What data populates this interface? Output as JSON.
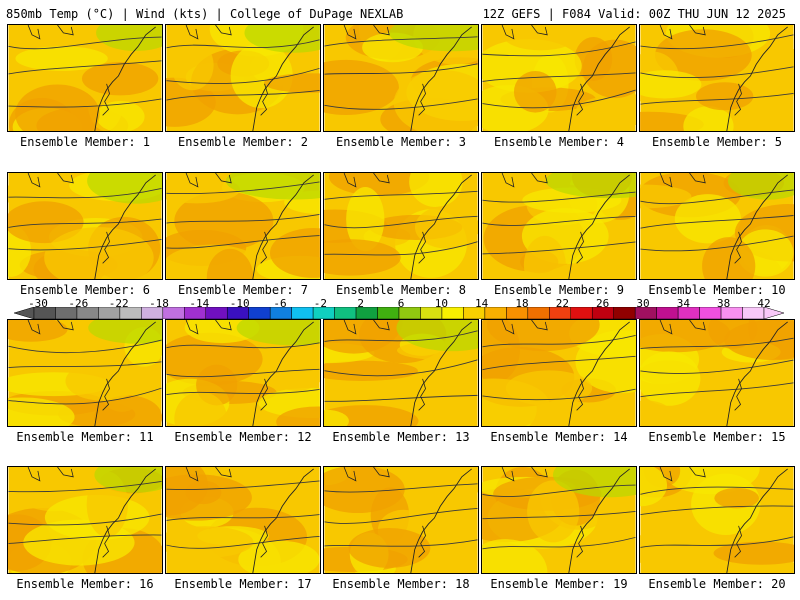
{
  "header": {
    "left": "850mb Temp (°C) | Wind (kts) | College of DuPage NEXLAB",
    "right": "12Z GEFS | F084 Valid: 00Z THU JUN 12 2025"
  },
  "panel_label_prefix": "Ensemble Member: ",
  "members": [
    "1",
    "2",
    "3",
    "4",
    "5",
    "6",
    "7",
    "8",
    "9",
    "10",
    "11",
    "12",
    "13",
    "14",
    "15",
    "16",
    "17",
    "18",
    "19",
    "20"
  ],
  "colorbar": {
    "labels": [
      "-30",
      "-26",
      "-22",
      "-18",
      "-14",
      "-10",
      "-6",
      "-2",
      "2",
      "6",
      "10",
      "14",
      "18",
      "22",
      "26",
      "30",
      "34",
      "38",
      "42"
    ],
    "colors": [
      "#555555",
      "#6e6e6e",
      "#888888",
      "#a2a2a2",
      "#bcbcbc",
      "#d0b0e0",
      "#c070e0",
      "#a030d0",
      "#7010c0",
      "#3a10c0",
      "#1040d0",
      "#1080e0",
      "#10c0f0",
      "#10d0c0",
      "#10c080",
      "#10a040",
      "#40b010",
      "#90c810",
      "#d8e010",
      "#f8f000",
      "#f8d000",
      "#f8b000",
      "#f89000",
      "#f07000",
      "#f04010",
      "#e01010",
      "#c00010",
      "#900000",
      "#a01060",
      "#c01090",
      "#e030c0",
      "#f050e0",
      "#f890f0",
      "#f8c8f8"
    ]
  },
  "colors": {
    "orange": "#f0a000",
    "amber": "#f8c800",
    "yellow": "#f8e800",
    "green": "#b8d800",
    "contour": "#3a3a3a"
  }
}
